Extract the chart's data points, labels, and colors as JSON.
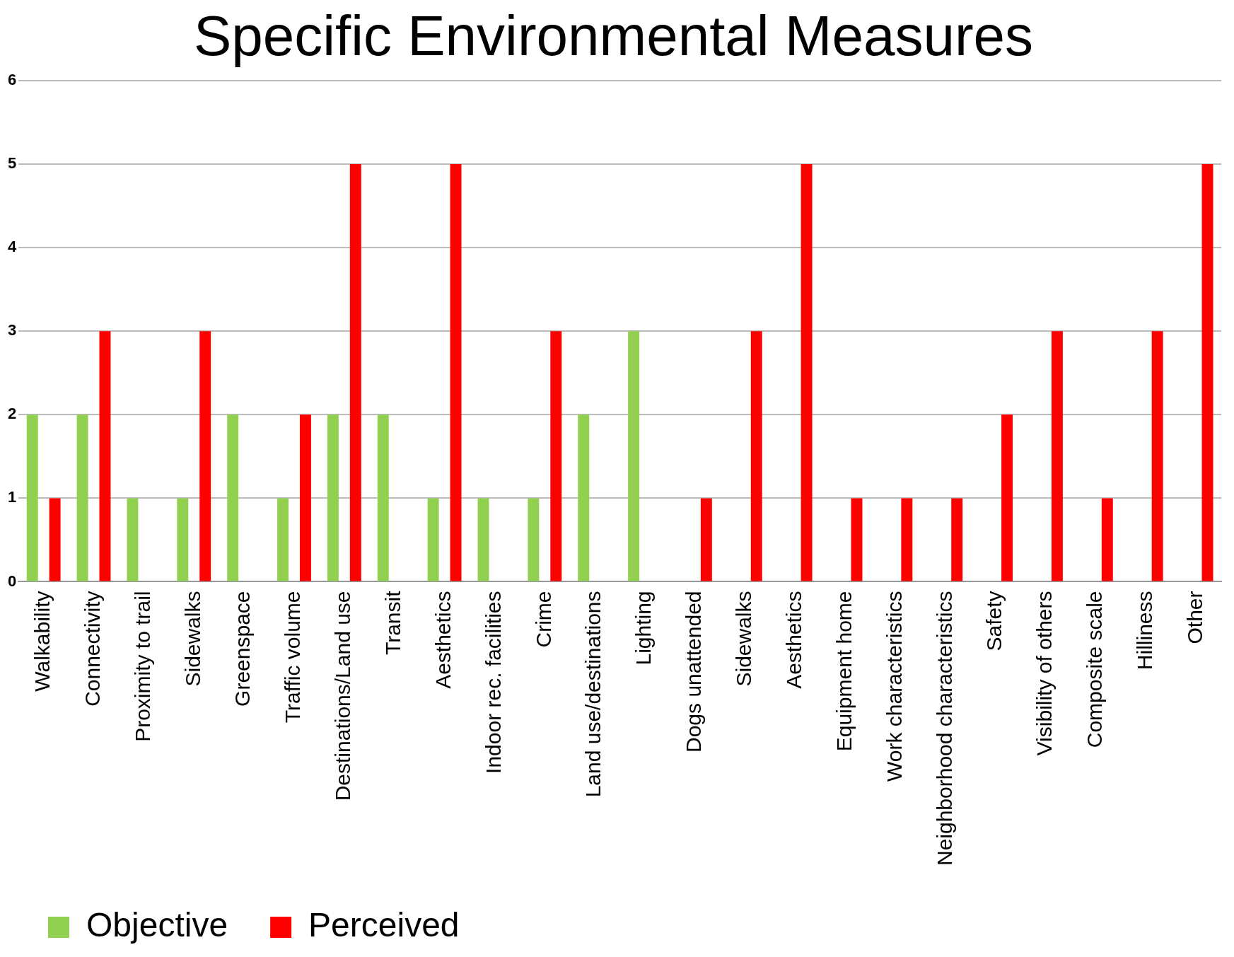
{
  "chart_data": {
    "type": "bar",
    "title": "Specific Environmental Measures",
    "categories": [
      "Walkability",
      "Connectivity",
      "Proximity to trail",
      "Sidewalks",
      "Greenspace",
      "Traffic volume",
      "Destinations/Land use",
      "Transit",
      "Aesthetics",
      "Indoor rec. facilities",
      "Crime",
      "Land use/destinations",
      "Lighting",
      "Dogs unattended",
      "Sidewalks",
      "Aesthetics",
      "Equipment home",
      "Work characteristics",
      "Neighborhood characteristics",
      "Safety",
      "Visibility of others",
      "Composite scale",
      "Hilliness",
      "Other"
    ],
    "series": [
      {
        "name": "Objective",
        "color": "#92d050",
        "values": [
          2,
          2,
          1,
          1,
          2,
          1,
          2,
          2,
          1,
          1,
          1,
          2,
          3,
          null,
          null,
          null,
          null,
          null,
          null,
          null,
          null,
          null,
          null,
          null
        ]
      },
      {
        "name": "Perceived",
        "color": "#ff0000",
        "values": [
          1,
          3,
          null,
          3,
          null,
          2,
          5,
          null,
          5,
          null,
          3,
          null,
          null,
          1,
          3,
          5,
          1,
          1,
          1,
          2,
          3,
          1,
          3,
          5
        ]
      }
    ],
    "ylim": [
      0,
      6
    ],
    "yticks": [
      0,
      1,
      2,
      3,
      4,
      5,
      6
    ],
    "grid": "y",
    "legend": "bottom left"
  }
}
